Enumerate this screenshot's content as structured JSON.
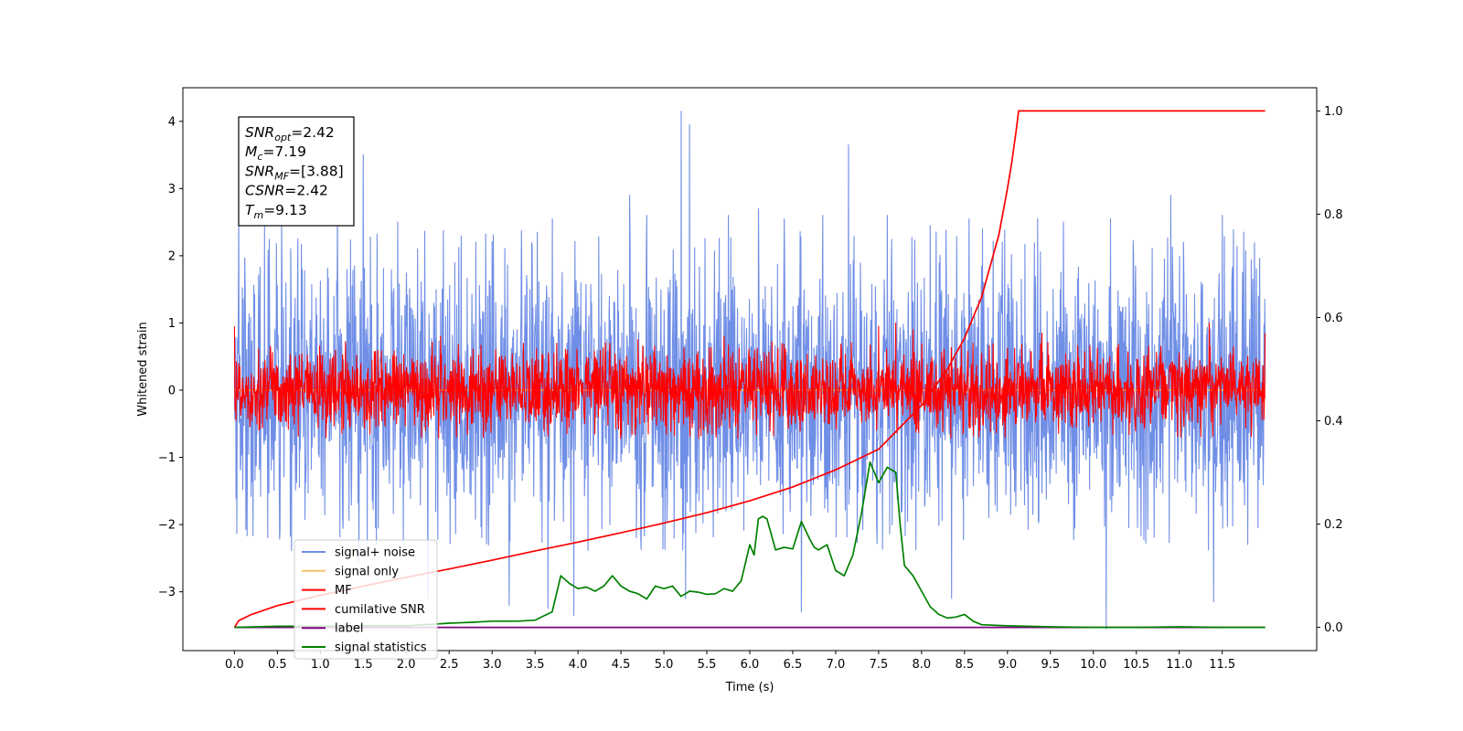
{
  "chart_data": {
    "type": "line",
    "xlabel": "Time (s)",
    "ylabel": "Whitened strain",
    "xlim": [
      -0.6,
      12.6
    ],
    "ylim": [
      -3.875,
      4.5
    ],
    "y2lim": [
      -0.045,
      1.045
    ],
    "x_tick_labels": [
      "0.0",
      "0.5",
      "1.0",
      "1.5",
      "2.0",
      "2.5",
      "3.0",
      "3.5",
      "4.0",
      "4.5",
      "5.0",
      "5.5",
      "6.0",
      "6.5",
      "7.0",
      "7.5",
      "8.0",
      "8.5",
      "9.0",
      "9.5",
      "10.0",
      "10.5",
      "11.0",
      "11.5"
    ],
    "x_ticks": [
      0,
      0.5,
      1,
      1.5,
      2,
      2.5,
      3,
      3.5,
      4,
      4.5,
      5,
      5.5,
      6,
      6.5,
      7,
      7.5,
      8,
      8.5,
      9,
      9.5,
      10,
      10.5,
      11,
      11.5
    ],
    "y_tick_labels": [
      "−3",
      "−2",
      "−1",
      "0",
      "1",
      "2",
      "3",
      "4"
    ],
    "y_ticks": [
      -3,
      -2,
      -1,
      0,
      1,
      2,
      3,
      4
    ],
    "y2_tick_labels": [
      "0.0",
      "0.2",
      "0.4",
      "0.6",
      "0.8",
      "1.0"
    ],
    "y2_ticks": [
      0,
      0.2,
      0.4,
      0.6,
      0.8,
      1.0
    ],
    "colors": {
      "signal_noise": "#6f8ee6",
      "signal_only": "#f5c06b",
      "mf": "#ff0000",
      "cumulative_snr": "#ff0000",
      "label": "#800080",
      "signal_statistics": "#008000"
    },
    "series": [
      {
        "name": "signal+ noise",
        "axis": "left",
        "color": "#6f8ee6",
        "style": "noise",
        "sigma": 1.0,
        "x_range": [
          0,
          12
        ],
        "peaks": [
          [
            0.05,
            2.55
          ],
          [
            0.35,
            2.5
          ],
          [
            0.55,
            2.5
          ],
          [
            1.2,
            2.6
          ],
          [
            1.5,
            3.5
          ],
          [
            1.9,
            2.5
          ],
          [
            3.7,
            2.55
          ],
          [
            4.6,
            2.9
          ],
          [
            4.8,
            2.6
          ],
          [
            5.2,
            4.15
          ],
          [
            5.3,
            3.95
          ],
          [
            5.75,
            2.6
          ],
          [
            6.1,
            2.7
          ],
          [
            6.4,
            2.55
          ],
          [
            6.85,
            2.6
          ],
          [
            7.15,
            3.65
          ],
          [
            7.6,
            2.6
          ],
          [
            8.1,
            2.45
          ],
          [
            8.55,
            2.55
          ],
          [
            9.35,
            2.55
          ],
          [
            9.65,
            2.5
          ],
          [
            10.2,
            2.55
          ],
          [
            10.9,
            2.9
          ],
          [
            11.5,
            2.6
          ],
          [
            11.75,
            2.35
          ],
          [
            1.45,
            -2.55
          ],
          [
            2.25,
            -3.1
          ],
          [
            3.2,
            -3.2
          ],
          [
            3.65,
            -3.25
          ],
          [
            3.95,
            -3.35
          ],
          [
            5.25,
            -3.1
          ],
          [
            6.6,
            -3.3
          ],
          [
            8.35,
            -3.1
          ],
          [
            10.15,
            -3.55
          ],
          [
            11.4,
            -3.15
          ]
        ]
      },
      {
        "name": "signal only",
        "axis": "left",
        "color": "#f5c06b",
        "style": "line",
        "x": [
          0,
          12
        ],
        "y": [
          0,
          0
        ]
      },
      {
        "name": "MF",
        "axis": "left",
        "color": "#ff0000",
        "style": "noise",
        "sigma": 0.3,
        "x_range": [
          0,
          12
        ],
        "peaks": [
          [
            0.0,
            0.95
          ],
          [
            0.02,
            -0.45
          ],
          [
            7.7,
            1.0
          ],
          [
            7.5,
            0.95
          ],
          [
            7.9,
            0.9
          ],
          [
            11.35,
            1.0
          ],
          [
            9.4,
            0.85
          ],
          [
            5.7,
            0.8
          ],
          [
            4.7,
            0.75
          ],
          [
            8.6,
            0.7
          ],
          [
            12.0,
            0.85
          ],
          [
            3.75,
            0.7
          ],
          [
            2.4,
            0.8
          ]
        ]
      },
      {
        "name": "cumilative SNR",
        "axis": "right",
        "color": "#ff0000",
        "style": "line",
        "x": [
          0.0,
          0.05,
          0.2,
          0.5,
          1.0,
          1.5,
          2.0,
          2.5,
          3.0,
          3.5,
          4.0,
          4.5,
          5.0,
          5.5,
          6.0,
          6.5,
          7.0,
          7.5,
          8.0,
          8.3,
          8.5,
          8.7,
          8.9,
          9.0,
          9.05,
          9.1,
          9.13,
          9.5,
          10.0,
          10.5,
          11.0,
          11.5,
          12.0
        ],
        "y": [
          0.0,
          0.013,
          0.025,
          0.042,
          0.062,
          0.08,
          0.097,
          0.113,
          0.13,
          0.148,
          0.165,
          0.183,
          0.202,
          0.222,
          0.245,
          0.272,
          0.305,
          0.345,
          0.43,
          0.5,
          0.56,
          0.64,
          0.76,
          0.85,
          0.9,
          0.96,
          1.0,
          1.0,
          1.0,
          1.0,
          1.0,
          1.0,
          1.0
        ]
      },
      {
        "name": "label",
        "axis": "right",
        "color": "#800080",
        "style": "line",
        "x": [
          0,
          12
        ],
        "y": [
          0,
          0
        ]
      },
      {
        "name": "signal statistics",
        "axis": "right",
        "color": "#008000",
        "style": "line",
        "x": [
          0.0,
          0.5,
          1.0,
          1.5,
          2.0,
          2.3,
          2.5,
          2.8,
          3.0,
          3.3,
          3.5,
          3.6,
          3.7,
          3.8,
          3.9,
          4.0,
          4.1,
          4.2,
          4.3,
          4.4,
          4.45,
          4.5,
          4.6,
          4.7,
          4.8,
          4.9,
          5.0,
          5.1,
          5.2,
          5.3,
          5.4,
          5.5,
          5.6,
          5.7,
          5.8,
          5.9,
          6.0,
          6.05,
          6.1,
          6.15,
          6.2,
          6.3,
          6.4,
          6.5,
          6.6,
          6.7,
          6.75,
          6.8,
          6.9,
          7.0,
          7.1,
          7.2,
          7.3,
          7.4,
          7.5,
          7.6,
          7.7,
          7.75,
          7.8,
          7.9,
          8.0,
          8.1,
          8.2,
          8.3,
          8.4,
          8.5,
          8.6,
          8.7,
          9.0,
          9.5,
          10.0,
          10.5,
          11.0,
          11.5,
          12.0
        ],
        "y": [
          0.0,
          0.002,
          0.002,
          0.003,
          0.003,
          0.006,
          0.008,
          0.01,
          0.012,
          0.012,
          0.014,
          0.022,
          0.03,
          0.1,
          0.085,
          0.075,
          0.078,
          0.07,
          0.08,
          0.1,
          0.09,
          0.08,
          0.07,
          0.065,
          0.055,
          0.08,
          0.075,
          0.08,
          0.06,
          0.07,
          0.068,
          0.064,
          0.065,
          0.075,
          0.07,
          0.09,
          0.16,
          0.14,
          0.21,
          0.215,
          0.21,
          0.15,
          0.155,
          0.152,
          0.205,
          0.17,
          0.155,
          0.15,
          0.16,
          0.11,
          0.1,
          0.14,
          0.22,
          0.32,
          0.28,
          0.31,
          0.3,
          0.2,
          0.12,
          0.1,
          0.07,
          0.04,
          0.025,
          0.018,
          0.02,
          0.025,
          0.012,
          0.005,
          0.003,
          0.001,
          0.0,
          0.0,
          0.001,
          0.0,
          0.0
        ]
      }
    ],
    "legend": [
      "signal+ noise",
      "signal only",
      "MF",
      "cumilative SNR",
      "label",
      "signal statistics"
    ],
    "legend_position": "lower-left",
    "annotation": {
      "lines": [
        {
          "sym": "SNR",
          "sub": "opt",
          "value": "=2.42"
        },
        {
          "sym": "M",
          "sub": "c",
          "value": "=7.19"
        },
        {
          "sym": "SNR",
          "sub": "MF",
          "value": "=[3.88]"
        },
        {
          "sym": "CSNR",
          "sub": "",
          "value": "=2.42"
        },
        {
          "sym": "T",
          "sub": "m",
          "value": "=9.13"
        }
      ],
      "position": "top-left"
    }
  }
}
